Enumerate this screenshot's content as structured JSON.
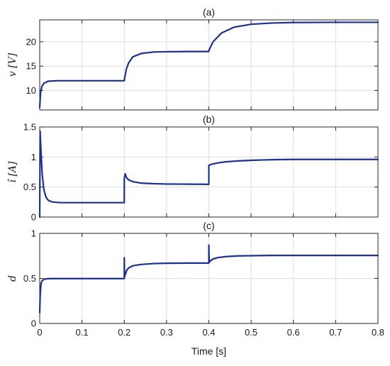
{
  "colors": {
    "series": "#1f2f8f",
    "grid": "#dedede",
    "axis": "#262626"
  },
  "chart_data": [
    {
      "type": "line",
      "title": "(a)",
      "ylabel": "v [V]",
      "xlabel": "",
      "xlim": [
        0,
        0.8
      ],
      "ylim": [
        6,
        24.5
      ],
      "xticks": [
        0,
        0.1,
        0.2,
        0.3,
        0.4,
        0.5,
        0.6,
        0.7,
        0.8
      ],
      "xtick_labels": [],
      "yticks": [
        10,
        15,
        20
      ],
      "ytick_labels": [
        "10",
        "15",
        "20"
      ],
      "grid": true,
      "series": [
        {
          "x": [
            0,
            0.002,
            0.005,
            0.01,
            0.02,
            0.04,
            0.1,
            0.2,
            0.201,
            0.205,
            0.21,
            0.22,
            0.24,
            0.27,
            0.3,
            0.35,
            0.4,
            0.401,
            0.41,
            0.43,
            0.46,
            0.5,
            0.55,
            0.6,
            0.7,
            0.8
          ],
          "values": [
            6.5,
            9.5,
            10.8,
            11.5,
            11.9,
            12.0,
            12.0,
            12.0,
            12.6,
            14.4,
            15.6,
            16.9,
            17.6,
            17.9,
            17.95,
            18.0,
            18.0,
            18.4,
            20.0,
            21.8,
            23.0,
            23.6,
            23.85,
            23.95,
            24.0,
            24.0
          ]
        }
      ]
    },
    {
      "type": "line",
      "title": "(b)",
      "ylabel": "î [A]",
      "xlabel": "",
      "xlim": [
        0,
        0.8
      ],
      "ylim": [
        0,
        1.5
      ],
      "xticks": [
        0,
        0.1,
        0.2,
        0.3,
        0.4,
        0.5,
        0.6,
        0.7,
        0.8
      ],
      "xtick_labels": [],
      "yticks": [
        0,
        0.5,
        1,
        1.5
      ],
      "ytick_labels": [
        "0",
        "0.5",
        "1",
        "1.5"
      ],
      "grid": true,
      "series": [
        {
          "x": [
            0,
            0.001,
            0.003,
            0.006,
            0.01,
            0.015,
            0.02,
            0.03,
            0.05,
            0.2,
            0.2001,
            0.202,
            0.205,
            0.21,
            0.22,
            0.24,
            0.27,
            0.3,
            0.35,
            0.4,
            0.4001,
            0.405,
            0.41,
            0.42,
            0.44,
            0.47,
            0.5,
            0.55,
            0.6,
            0.7,
            0.8
          ],
          "values": [
            0.0,
            1.43,
            1.1,
            0.7,
            0.45,
            0.33,
            0.28,
            0.25,
            0.24,
            0.24,
            0.64,
            0.72,
            0.66,
            0.62,
            0.59,
            0.565,
            0.555,
            0.55,
            0.548,
            0.545,
            0.86,
            0.875,
            0.885,
            0.9,
            0.92,
            0.935,
            0.945,
            0.955,
            0.96,
            0.96,
            0.96
          ]
        }
      ]
    },
    {
      "type": "line",
      "title": "(c)",
      "ylabel": "d",
      "xlabel": "Time [s]",
      "xlim": [
        0,
        0.8
      ],
      "ylim": [
        0,
        1
      ],
      "xticks": [
        0,
        0.1,
        0.2,
        0.3,
        0.4,
        0.5,
        0.6,
        0.7,
        0.8
      ],
      "xtick_labels": [
        "0",
        "0.1",
        "0.2",
        "0.3",
        "0.4",
        "0.5",
        "0.6",
        "0.7",
        "0.8"
      ],
      "yticks": [
        0,
        0.5,
        1
      ],
      "ytick_labels": [
        "0",
        "0.5",
        "1"
      ],
      "grid": true,
      "series": [
        {
          "x": [
            0,
            0.001,
            0.003,
            0.006,
            0.01,
            0.015,
            0.02,
            0.03,
            0.05,
            0.2,
            0.2001,
            0.2005,
            0.201,
            0.203,
            0.206,
            0.21,
            0.22,
            0.24,
            0.27,
            0.3,
            0.35,
            0.4,
            0.4001,
            0.4005,
            0.401,
            0.405,
            0.41,
            0.42,
            0.44,
            0.47,
            0.5,
            0.55,
            0.6,
            0.7,
            0.8
          ],
          "values": [
            0.12,
            0.3,
            0.44,
            0.475,
            0.49,
            0.495,
            0.497,
            0.498,
            0.498,
            0.498,
            0.73,
            0.6,
            0.52,
            0.55,
            0.59,
            0.615,
            0.64,
            0.655,
            0.665,
            0.668,
            0.67,
            0.67,
            0.87,
            0.75,
            0.68,
            0.7,
            0.715,
            0.73,
            0.742,
            0.75,
            0.752,
            0.755,
            0.755,
            0.755,
            0.755
          ]
        }
      ]
    }
  ]
}
